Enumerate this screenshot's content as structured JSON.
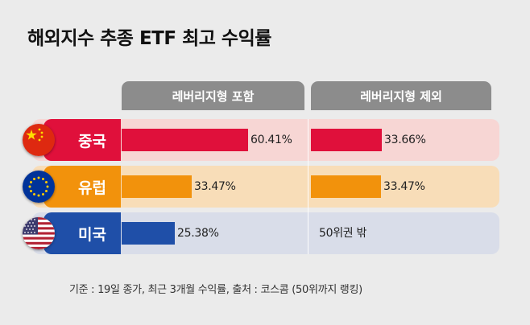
{
  "title": "해외지수 추종 ETF 최고 수익률",
  "footnote": "기준 : 19일 종가, 최근 3개월 수익률, 출처 : 코스콤 (50위까지 랭킹)",
  "colors": {
    "china": "#e0103b",
    "europe": "#f2920c",
    "usa": "#1f4fa8",
    "china_bg": "#f7d6d4",
    "europe_bg": "#f8ddb8",
    "usa_bg": "#d9dde9",
    "header": "#8c8c8c"
  },
  "chart_data": {
    "type": "bar",
    "title": "해외지수 추종 ETF 최고 수익률",
    "columns": [
      "레버리지형 포함",
      "레버리지형 제외"
    ],
    "categories": [
      "중국",
      "유럽",
      "미국"
    ],
    "unit": "%",
    "xlim": [
      0,
      100
    ],
    "series": [
      {
        "name": "레버리지형 포함",
        "values": [
          60.41,
          33.47,
          25.38
        ],
        "labels": [
          "60.41%",
          "33.47%",
          "25.38%"
        ]
      },
      {
        "name": "레버리지형 제외",
        "values": [
          33.66,
          33.47,
          null
        ],
        "labels": [
          "33.66%",
          "33.47%",
          "50위권 밖"
        ]
      }
    ]
  }
}
